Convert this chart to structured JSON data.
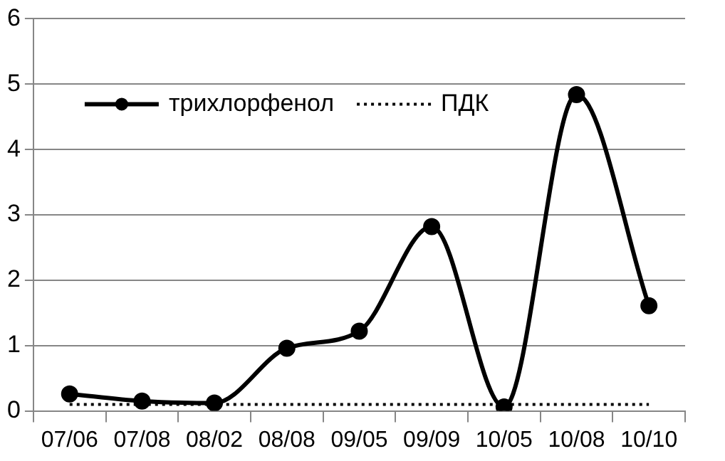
{
  "chart_data": {
    "type": "line",
    "categories": [
      "07/06",
      "07/08",
      "08/02",
      "08/08",
      "09/05",
      "09/09",
      "10/05",
      "10/08",
      "10/10"
    ],
    "series": [
      {
        "name": "трихлорфенол",
        "color": "#000000",
        "marker": "circle",
        "line_style": "solid",
        "values": [
          0.26,
          0.15,
          0.12,
          0.96,
          1.22,
          2.82,
          0.06,
          4.84,
          1.61
        ]
      },
      {
        "name": "ПДК",
        "color": "#000000",
        "marker": "none",
        "line_style": "dotted",
        "values": [
          0.1,
          0.1,
          0.1,
          0.1,
          0.1,
          0.1,
          0.1,
          0.1,
          0.1
        ]
      }
    ],
    "ylim": [
      0,
      6
    ],
    "yticks": [
      0,
      1,
      2,
      3,
      4,
      5,
      6
    ],
    "grid": "y",
    "legend": "top left"
  }
}
